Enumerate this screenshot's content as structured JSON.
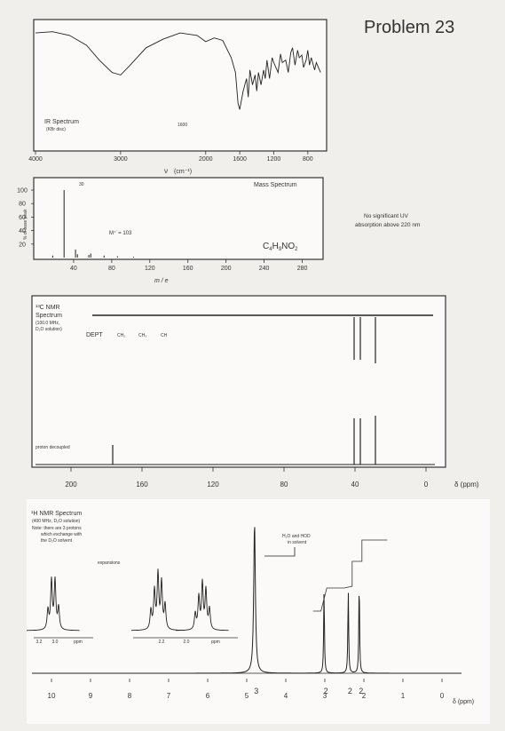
{
  "problem": {
    "title": "Problem 23"
  },
  "uv": {
    "line1": "No significant UV",
    "line2": "absorption above 220 nm"
  },
  "chart_data": [
    {
      "type": "line",
      "label": "IR Spectrum",
      "sublabel": "(KBr disc)",
      "xlabel_symbol": "ν",
      "xlabel_unit": "(cm⁻¹)",
      "xlim": [
        4000,
        600
      ],
      "ticks": [
        4000,
        3000,
        2000,
        1600,
        1200,
        800
      ],
      "marker": "1600",
      "x": [
        4000,
        3800,
        3600,
        3400,
        3250,
        3100,
        3000,
        2900,
        2700,
        2500,
        2300,
        2100,
        2000,
        1900,
        1800,
        1700,
        1650,
        1620,
        1600,
        1560,
        1520,
        1500,
        1480,
        1450,
        1420,
        1400,
        1380,
        1350,
        1320,
        1300,
        1280,
        1250,
        1220,
        1200,
        1150,
        1120,
        1100,
        1060,
        1030,
        1000,
        980,
        950,
        920,
        900,
        870,
        850,
        820,
        800,
        780,
        760,
        720,
        700,
        650
      ],
      "y": [
        92,
        93,
        90,
        82,
        70,
        60,
        58,
        65,
        80,
        87,
        92,
        90,
        85,
        88,
        86,
        72,
        60,
        35,
        30,
        45,
        55,
        40,
        62,
        50,
        58,
        45,
        60,
        50,
        62,
        55,
        70,
        55,
        72,
        68,
        60,
        75,
        68,
        70,
        60,
        76,
        80,
        66,
        78,
        72,
        74,
        64,
        70,
        78,
        66,
        72,
        62,
        68,
        60
      ]
    },
    {
      "type": "bar",
      "label": "Mass Spectrum",
      "xlabel": "m / e",
      "ylabel": "% of base peak",
      "xlim": [
        0,
        300
      ],
      "ylim": [
        0,
        100
      ],
      "xticks": [
        40,
        80,
        120,
        160,
        200,
        240,
        280
      ],
      "yticks": [
        20,
        40,
        60,
        80,
        100
      ],
      "base_peak_label": "30",
      "molecular_ion": "M⁺˙= 103",
      "formula": "C4H9NO2",
      "formula_parts": {
        "c": "C",
        "cn": "4",
        "h": "H",
        "hn": "9",
        "rest": "NO",
        "on": "2"
      },
      "x": [
        18,
        30,
        42,
        44,
        56,
        58,
        72,
        86,
        103
      ],
      "values": [
        3,
        100,
        12,
        5,
        4,
        6,
        3,
        2,
        1
      ]
    },
    {
      "type": "bar",
      "label": "¹³C NMR",
      "label2": "Spectrum",
      "conditions1": "(100.0 MHz,",
      "conditions2": "D₂O solution)",
      "dept_label": "DEPT",
      "dept_terms": [
        "CH₂",
        "CH₃",
        "CH"
      ],
      "decoupled_label": "proton decoupled",
      "xlim": [
        220,
        -5
      ],
      "ticks": [
        "200",
        "160",
        "120",
        "80",
        "40",
        "0"
      ],
      "tick_values": [
        200,
        160,
        120,
        80,
        40,
        0
      ],
      "axis_unit": "δ (ppm)",
      "shifts": [
        176.5,
        40.5,
        37.0,
        28.5
      ],
      "dept": [
        0,
        1,
        1,
        1
      ]
    },
    {
      "type": "line",
      "label": "¹H NMR Spectrum",
      "conditions": "(400 MHz, D₂O solution)",
      "note1": "Note: there are 3 protons",
      "note2": "which exchange with",
      "note3": "the D₂O solvent",
      "expansions_label": "expansions",
      "exp_ticks": [
        "3.2",
        "3.0",
        "ppm",
        "2.2",
        "2.0",
        "ppm"
      ],
      "solvent_note1": "H₂O and HOD",
      "solvent_note2": "in solvent",
      "xlim": [
        10.5,
        -0.5
      ],
      "ticks": [
        "10",
        "9",
        "8",
        "7",
        "6",
        "5",
        "4",
        "3",
        "2",
        "1",
        "0"
      ],
      "tick_values": [
        10,
        9,
        8,
        7,
        6,
        5,
        4,
        3,
        2,
        1,
        0
      ],
      "axis_unit": "δ (ppm)",
      "peaks": [
        {
          "shift": 4.8,
          "height": 1.0,
          "integral": "3"
        },
        {
          "shift": 3.02,
          "height": 0.55,
          "integral": "2"
        },
        {
          "shift": 2.4,
          "height": 0.55,
          "integral": "2"
        },
        {
          "shift": 2.12,
          "height": 0.6,
          "integral": "2"
        }
      ],
      "marks": [
        "4",
        "4"
      ]
    }
  ]
}
